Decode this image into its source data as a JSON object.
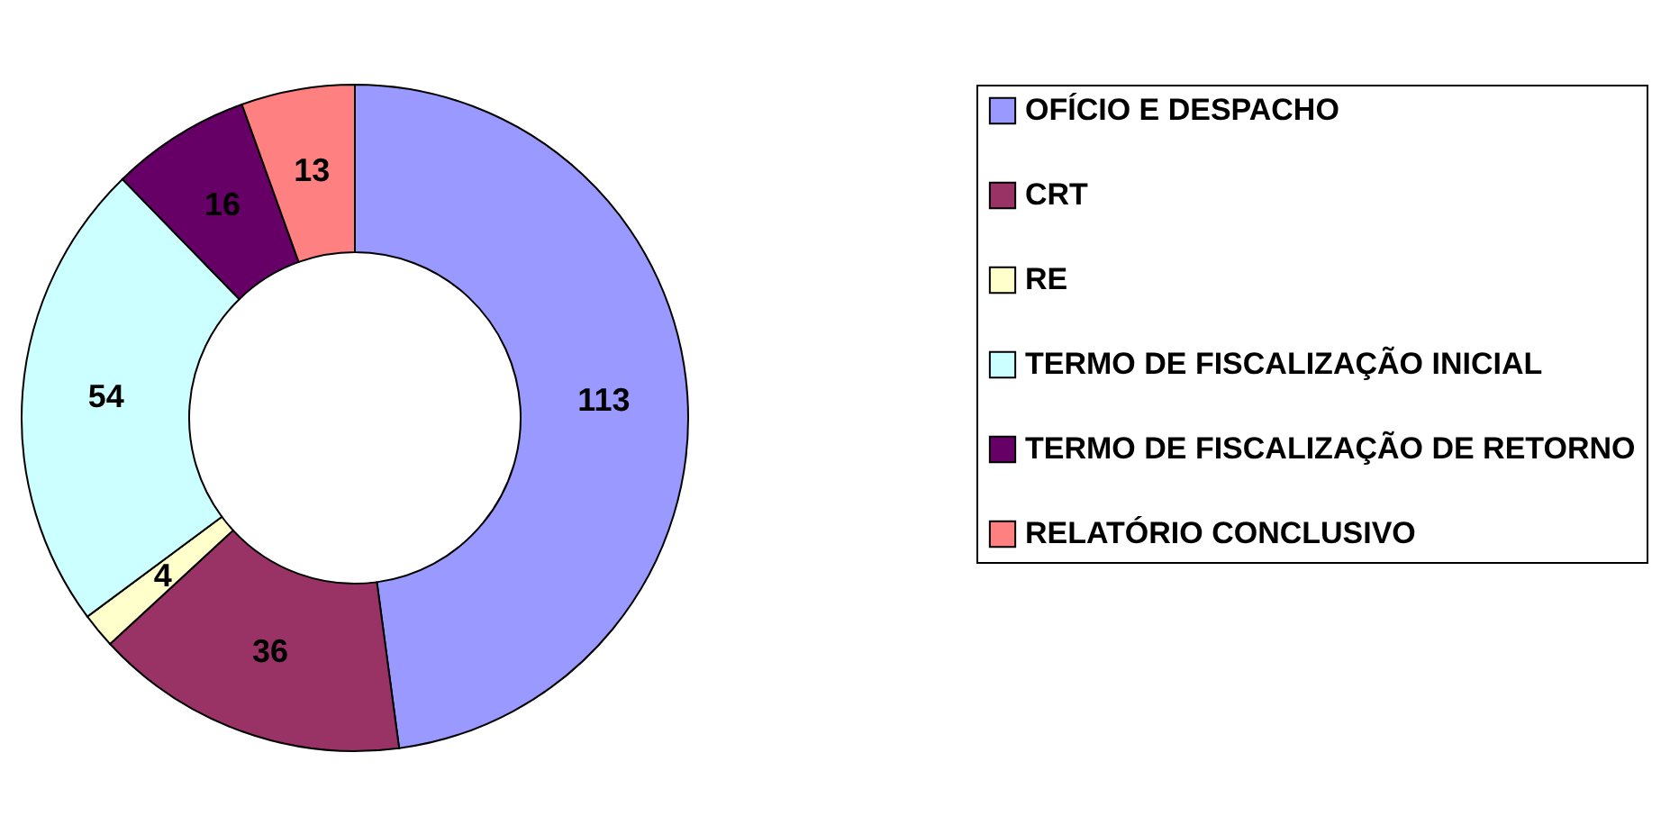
{
  "chart_data": {
    "type": "donut",
    "categories": [
      "OFÍCIO E DESPACHO",
      "CRT",
      "RE",
      "TERMO DE FISCALIZAÇÃO INICIAL",
      "TERMO DE FISCALIZAÇÃO DE RETORNO",
      "RELATÓRIO CONCLUSIVO"
    ],
    "values": [
      113,
      36,
      4,
      54,
      16,
      13
    ],
    "colors": [
      "#9999ff",
      "#993366",
      "#ffffcc",
      "#ccffff",
      "#660066",
      "#ff8080"
    ],
    "data_labels": true,
    "legend": "right"
  }
}
